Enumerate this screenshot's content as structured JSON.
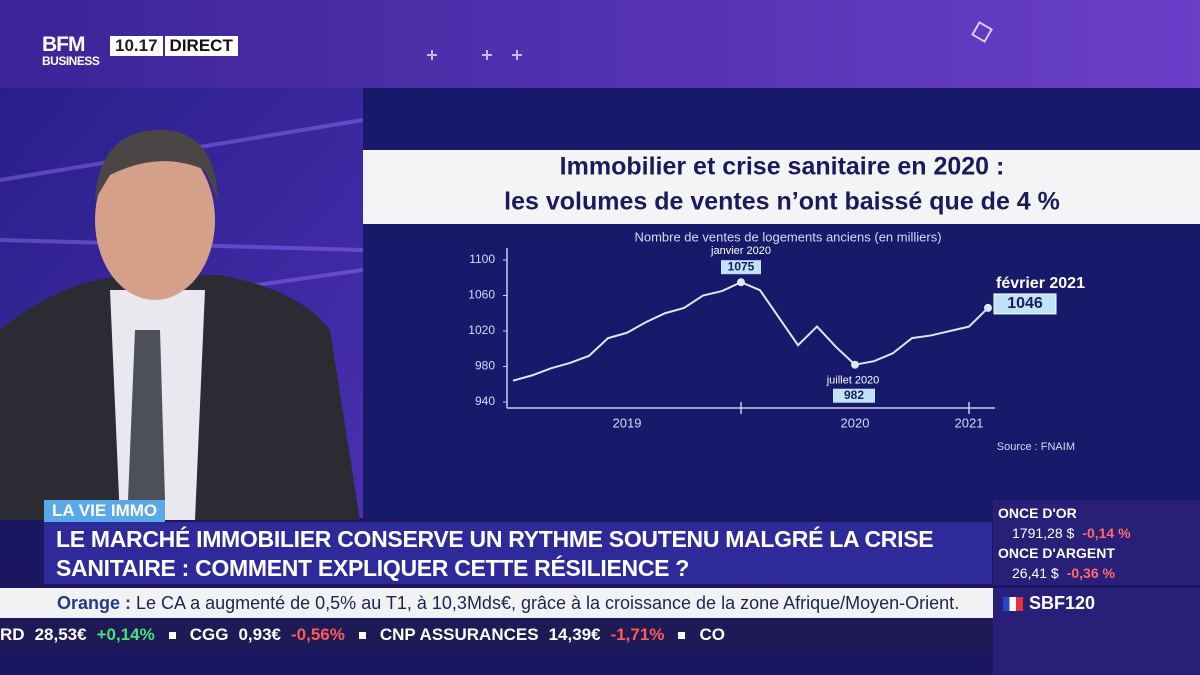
{
  "header": {
    "logo": "BFM",
    "logo_sub": "BUSINESS",
    "time": "10.17",
    "live": "DIRECT"
  },
  "chart_data": {
    "type": "line",
    "title": "Immobilier et crise sanitaire en 2020 :",
    "title_line2": "les volumes de ventes n’ont baissé que de 4 %",
    "subtitle": "Nombre de ventes de logements anciens (en milliers)",
    "categories": [
      null,
      null,
      null,
      null,
      null,
      null,
      "2019",
      null,
      null,
      null,
      null,
      null,
      null,
      null,
      null,
      null,
      null,
      null,
      "2020",
      null,
      null,
      null,
      null,
      null,
      "2021",
      null
    ],
    "values": [
      964,
      970,
      978,
      984,
      992,
      1012,
      1018,
      1030,
      1040,
      1046,
      1060,
      1065,
      1075,
      1066,
      1035,
      1004,
      1025,
      1002,
      982,
      986,
      995,
      1012,
      1015,
      1020,
      1025,
      1046
    ],
    "color": "#dbe8ff",
    "ylim": [
      940,
      1100
    ],
    "yticks": [
      940,
      980,
      1020,
      1060,
      1100
    ],
    "annotations": [
      "janvier 2020",
      "juillet 2020",
      "février 2021"
    ],
    "source": "Source : FNAIM"
  },
  "banner": {
    "tag": "LA VIE IMMO",
    "headline_line1": "LE MARCHÉ IMMOBILIER CONSERVE UN RYTHME SOUTENU MALGRÉ LA CRISE",
    "headline_line2": "SANITAIRE : COMMENT EXPLIQUER CETTE RÉSILIENCE ?"
  },
  "markets": [
    {
      "name": "ONCE D'OR",
      "price": "1791,28 $",
      "change": "-0,14 %"
    },
    {
      "name": "ONCE D'ARGENT",
      "price": "26,41 $",
      "change": "-0,36 %"
    }
  ],
  "news": {
    "company": "Orange :",
    "text": "Le CA a augmenté de 0,5% au T1, à 10,3Mds€, grâce à la croissance de la zone Afrique/Moyen-Orient."
  },
  "stocks": [
    {
      "name": "RD",
      "price": "28,53€",
      "change": "+0,14%"
    },
    {
      "name": "CGG",
      "price": "0,93€",
      "change": "-0,56%"
    },
    {
      "name": "CNP ASSURANCES",
      "price": "14,39€",
      "change": "-1,71%"
    },
    {
      "name": "CO",
      "price": "",
      "change": ""
    }
  ],
  "index": "SBF120"
}
